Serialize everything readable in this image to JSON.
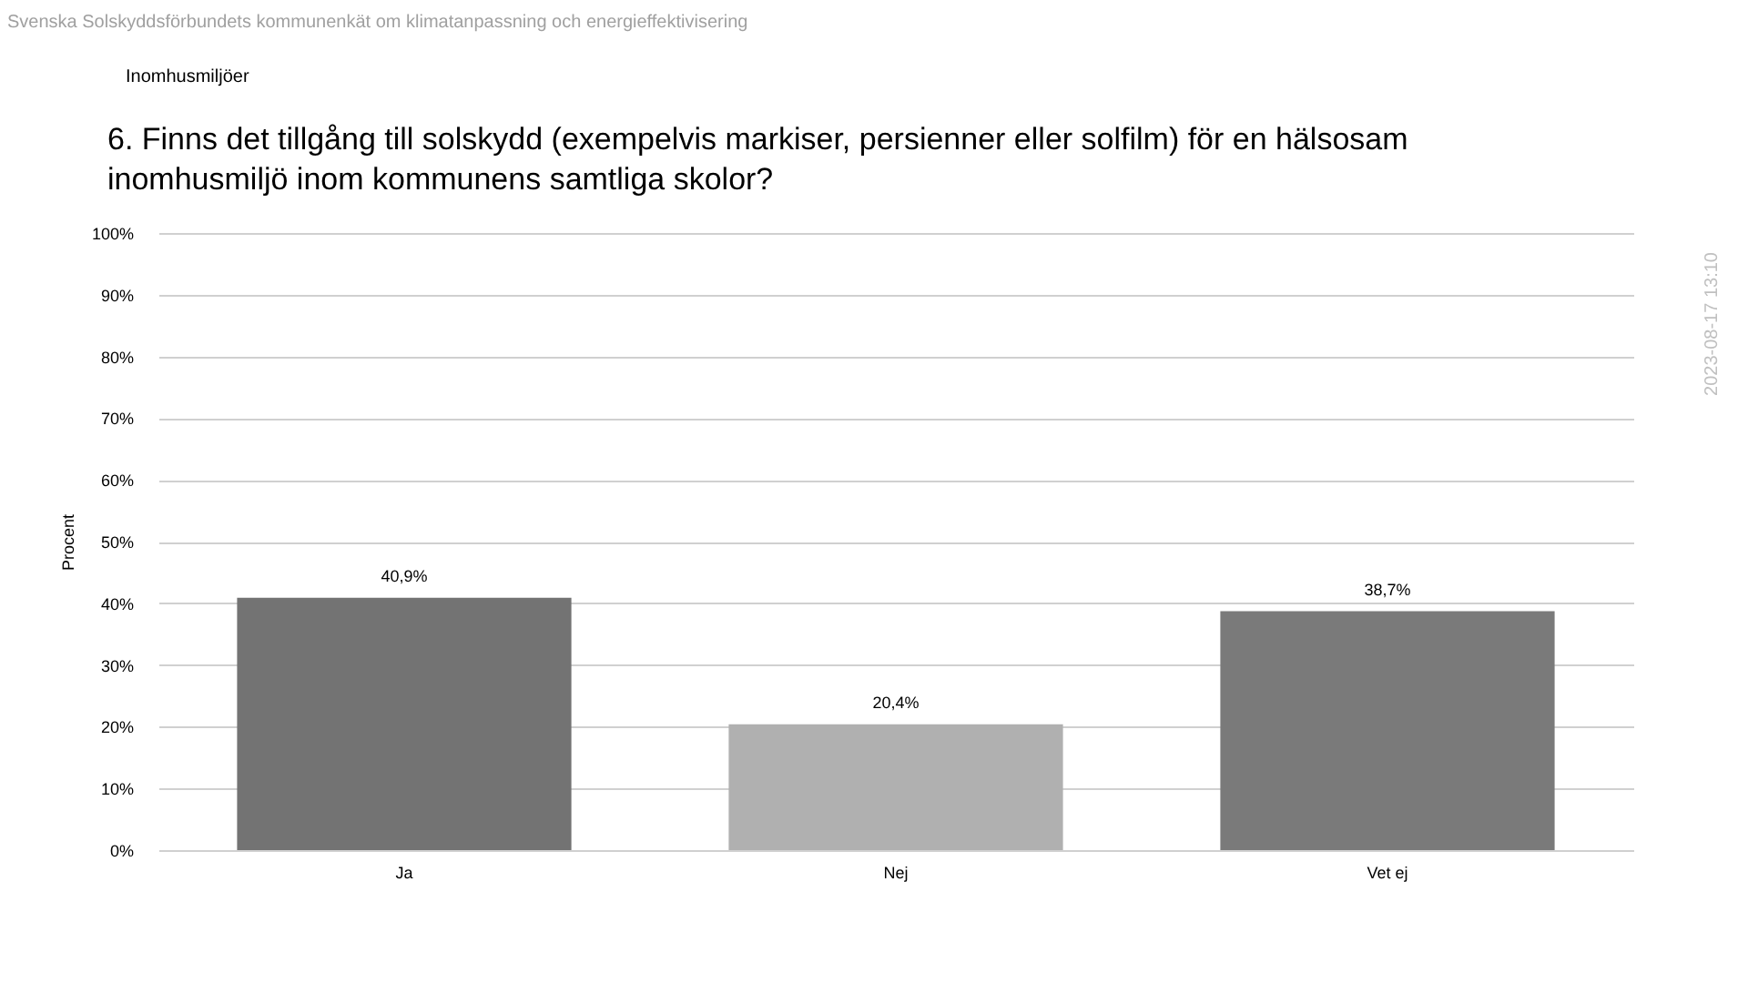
{
  "chart_data": {
    "type": "bar",
    "title": "6. Finns det tillgång till solskydd (exempelvis markiser, persienner eller solfilm) för en hälsosam inomhusmiljö inom kommunens samtliga skolor?",
    "subtitle": "Inomhusmiljöer",
    "annotations": [
      "Svenska Solskyddsförbundets kommunenkät om klimatanpassning och energieffektivisering",
      "2023-08-17 13:10"
    ],
    "ylabel": "Procent",
    "categories": [
      "Ja",
      "Nej",
      "Vet ej"
    ],
    "values": [
      40.9,
      20.4,
      38.7
    ],
    "colors": [
      "#737373",
      "#b0b0b0",
      "#7a7a7a"
    ],
    "value_labels": [
      "40,9%",
      "20,4%",
      "38,7%"
    ],
    "ylim": [
      0,
      100
    ],
    "yticks": [
      {
        "value": 0,
        "label": "0%"
      },
      {
        "value": 10,
        "label": "10%"
      },
      {
        "value": 20,
        "label": "20%"
      },
      {
        "value": 30,
        "label": "30%"
      },
      {
        "value": 40,
        "label": "40%"
      },
      {
        "value": 50,
        "label": "50%"
      },
      {
        "value": 60,
        "label": "60%"
      },
      {
        "value": 70,
        "label": "70%"
      },
      {
        "value": 80,
        "label": "80%"
      },
      {
        "value": 90,
        "label": "90%"
      },
      {
        "value": 100,
        "label": "100%"
      }
    ],
    "grid": "y"
  }
}
